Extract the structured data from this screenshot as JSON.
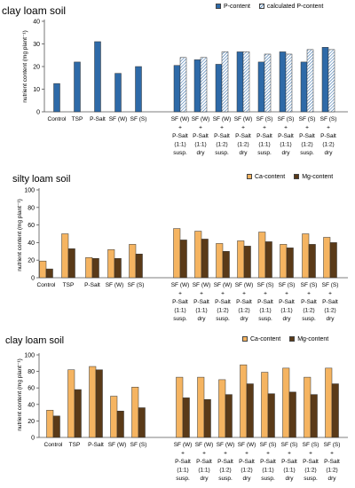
{
  "colors": {
    "p_bar": "#2e6aa8",
    "p_hatch": "#2e6aa8",
    "ca_bar": "#f5b461",
    "mg_bar": "#5a3a18",
    "axis": "#555555",
    "bar_stroke": "#333333"
  },
  "chart_data": [
    {
      "type": "bar",
      "title": "clay loam soil",
      "ylabel": "nutrient content (mg plant⁻¹)",
      "ylim": [
        0,
        40
      ],
      "yticks": [
        0,
        10,
        20,
        30,
        40
      ],
      "legend_position": "top-right",
      "categories": [
        [
          "Control"
        ],
        [
          "TSP"
        ],
        [
          "P-Salt"
        ],
        [
          "SF (W)"
        ],
        [
          "SF (S)"
        ],
        [
          "SF (W)",
          "+",
          "P-Salt",
          "(1:1)",
          "susp."
        ],
        [
          "SF (W)",
          "+",
          "P-Salt",
          "(1:1)",
          "dry"
        ],
        [
          "SF (W)",
          "+",
          "P-Salt",
          "(1:2)",
          "susp."
        ],
        [
          "SF (W)",
          "+",
          "P-Salt",
          "(1:2)",
          "dry"
        ],
        [
          "SF (S)",
          "+",
          "P-Salt",
          "(1:1)",
          "susp."
        ],
        [
          "SF (S)",
          "+",
          "P-Salt",
          "(1:1)",
          "dry"
        ],
        [
          "SF (S)",
          "+",
          "P-Salt",
          "(1:2)",
          "susp."
        ],
        [
          "SF (S)",
          "+",
          "P-Salt",
          "(1:2)",
          "dry"
        ]
      ],
      "series": [
        {
          "name": "P-content",
          "style": "solid",
          "values": [
            12.5,
            22,
            31,
            17,
            20,
            20.5,
            23,
            21,
            26.5,
            22,
            26.5,
            22,
            28.5
          ]
        },
        {
          "name": "calculated P-content",
          "style": "hatched",
          "values": [
            null,
            null,
            null,
            null,
            null,
            24,
            24,
            26.5,
            26.5,
            25.5,
            25.5,
            27.5,
            27.5
          ]
        }
      ]
    },
    {
      "type": "bar",
      "title": "silty loam soil",
      "ylabel": "nutrient content (mg plant⁻¹)",
      "ylim": [
        0,
        100
      ],
      "yticks": [
        0,
        20,
        40,
        60,
        80,
        100
      ],
      "legend_position": "top-right",
      "categories": [
        [
          "Control"
        ],
        [
          "TSP"
        ],
        [
          "P-Salt"
        ],
        [
          "SF (W)"
        ],
        [
          "SF (S)"
        ],
        [
          "SF (W)",
          "+",
          "P-Salt",
          "(1:1)",
          "susp."
        ],
        [
          "SF (W)",
          "+",
          "P-Salt",
          "(1:1)",
          "dry"
        ],
        [
          "SF (W)",
          "+",
          "P-Salt",
          "(1:2)",
          "susp."
        ],
        [
          "SF (W)",
          "+",
          "P-Salt",
          "(1:2)",
          "dry"
        ],
        [
          "SF (S)",
          "+",
          "P-Salt",
          "(1:1)",
          "susp."
        ],
        [
          "SF (S)",
          "+",
          "P-Salt",
          "(1:1)",
          "dry"
        ],
        [
          "SF (S)",
          "+",
          "P-Salt",
          "(1:2)",
          "susp."
        ],
        [
          "SF (S)",
          "+",
          "P-Salt",
          "(1:2)",
          "dry"
        ]
      ],
      "series": [
        {
          "name": "Ca-content",
          "style": "ca",
          "values": [
            19,
            50,
            23,
            32,
            38,
            56,
            53,
            39,
            42,
            52,
            38,
            50,
            46
          ]
        },
        {
          "name": "Mg-content",
          "style": "mg",
          "values": [
            10,
            33,
            22,
            22,
            27,
            43,
            44,
            30,
            36,
            41,
            34,
            38,
            40
          ]
        }
      ]
    },
    {
      "type": "bar",
      "title": "clay loam soil",
      "ylabel": "nutrient content (mg plant⁻¹)",
      "ylim": [
        0,
        100
      ],
      "yticks": [
        0,
        20,
        40,
        60,
        80,
        100
      ],
      "legend_position": "top-right",
      "categories": [
        [
          "Control"
        ],
        [
          "TSP"
        ],
        [
          "P-Salt"
        ],
        [
          "SF (W)"
        ],
        [
          "SF (S)"
        ],
        [
          "SF (W)",
          "+",
          "P-Salt",
          "(1:1)",
          "susp."
        ],
        [
          "SF (W)",
          "+",
          "P-Salt",
          "(1:1)",
          "dry"
        ],
        [
          "SF (W)",
          "+",
          "P-Salt",
          "(1:2)",
          "susp."
        ],
        [
          "SF (W)",
          "+",
          "P-Salt",
          "(1:2)",
          "dry"
        ],
        [
          "SF (S)",
          "+",
          "P-Salt",
          "(1:1)",
          "susp."
        ],
        [
          "SF (S)",
          "+",
          "P-Salt",
          "(1:1)",
          "dry"
        ],
        [
          "SF (S)",
          "+",
          "P-Salt",
          "(1:2)",
          "susp."
        ],
        [
          "SF (S)",
          "+",
          "P-Salt",
          "(1:2)",
          "dry"
        ]
      ],
      "series": [
        {
          "name": "Ca-content",
          "style": "ca",
          "values": [
            33,
            82,
            86,
            50,
            61,
            73,
            73,
            70,
            88,
            79,
            84,
            73,
            84
          ]
        },
        {
          "name": "Mg-content",
          "style": "mg",
          "values": [
            26,
            58,
            82,
            32,
            36,
            48,
            46,
            52,
            65,
            53,
            55,
            52,
            65
          ]
        }
      ]
    }
  ]
}
